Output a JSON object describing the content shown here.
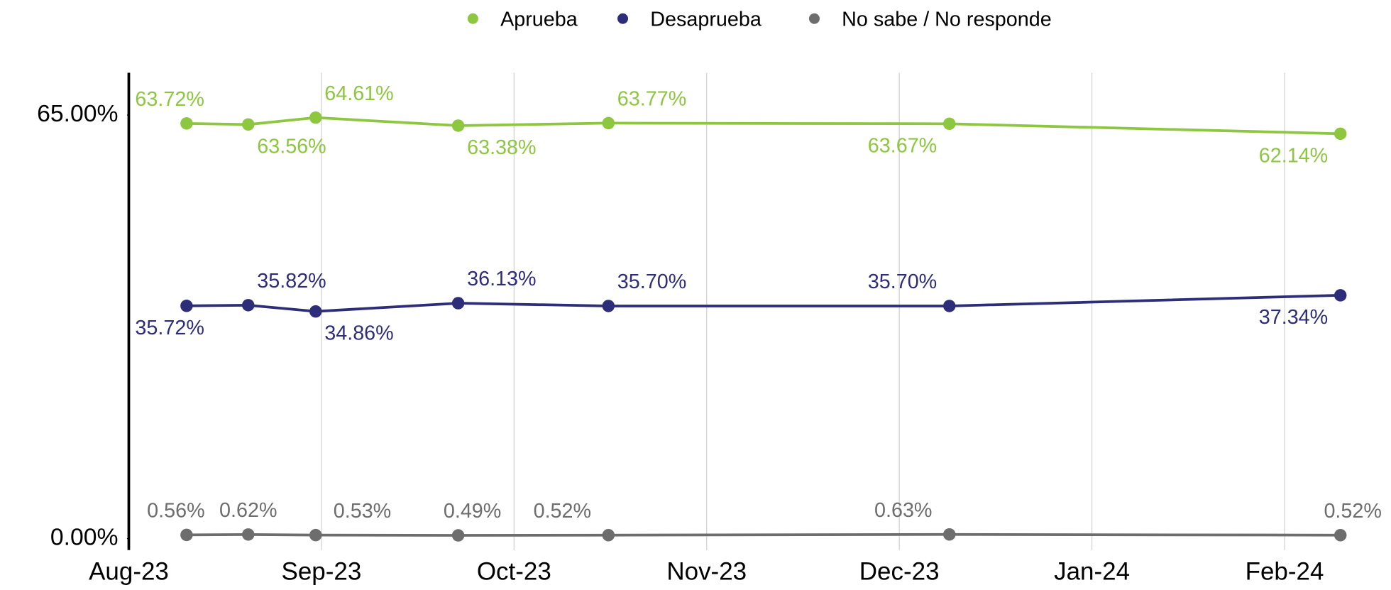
{
  "chart_data": {
    "type": "line",
    "x": [
      0.3,
      0.62,
      0.97,
      1.71,
      2.49,
      4.26,
      6.29
    ],
    "xlim": [
      0,
      6.35
    ],
    "xticks": [
      {
        "value": 0,
        "label": "Aug-23"
      },
      {
        "value": 1,
        "label": "Sep-23"
      },
      {
        "value": 2,
        "label": "Oct-23"
      },
      {
        "value": 3,
        "label": "Nov-23"
      },
      {
        "value": 4,
        "label": "Dec-23"
      },
      {
        "value": 5,
        "label": "Jan-24"
      },
      {
        "value": 6,
        "label": "Feb-24"
      }
    ],
    "ylim": [
      0,
      71.5
    ],
    "yticks": [
      {
        "value": 0,
        "label": "0.00%"
      },
      {
        "value": 65,
        "label": "65.00%"
      }
    ],
    "grid": true,
    "legend": "top",
    "series": [
      {
        "name": "Aprueba",
        "color": "#8dc63f",
        "values": [
          63.72,
          63.56,
          64.61,
          63.38,
          63.77,
          63.67,
          62.14
        ],
        "value_labels": [
          "63.72%",
          "63.56%",
          "64.61%",
          "63.38%",
          "63.77%",
          "63.67%",
          "62.14%"
        ]
      },
      {
        "name": "Desaprueba",
        "color": "#2e2d7a",
        "values": [
          35.72,
          35.82,
          34.86,
          36.13,
          35.7,
          35.7,
          37.34
        ],
        "value_labels": [
          "35.72%",
          "35.82%",
          "34.86%",
          "36.13%",
          "35.70%",
          "35.70%",
          "37.34%"
        ]
      },
      {
        "name": "No sabe / No responde",
        "color": "#6d6d6d",
        "values": [
          0.56,
          0.62,
          0.53,
          0.49,
          0.52,
          0.63,
          0.52
        ],
        "value_labels": [
          "0.56%",
          "0.62%",
          "0.53%",
          "0.49%",
          "0.52%",
          "0.63%",
          "0.52%"
        ]
      }
    ]
  }
}
